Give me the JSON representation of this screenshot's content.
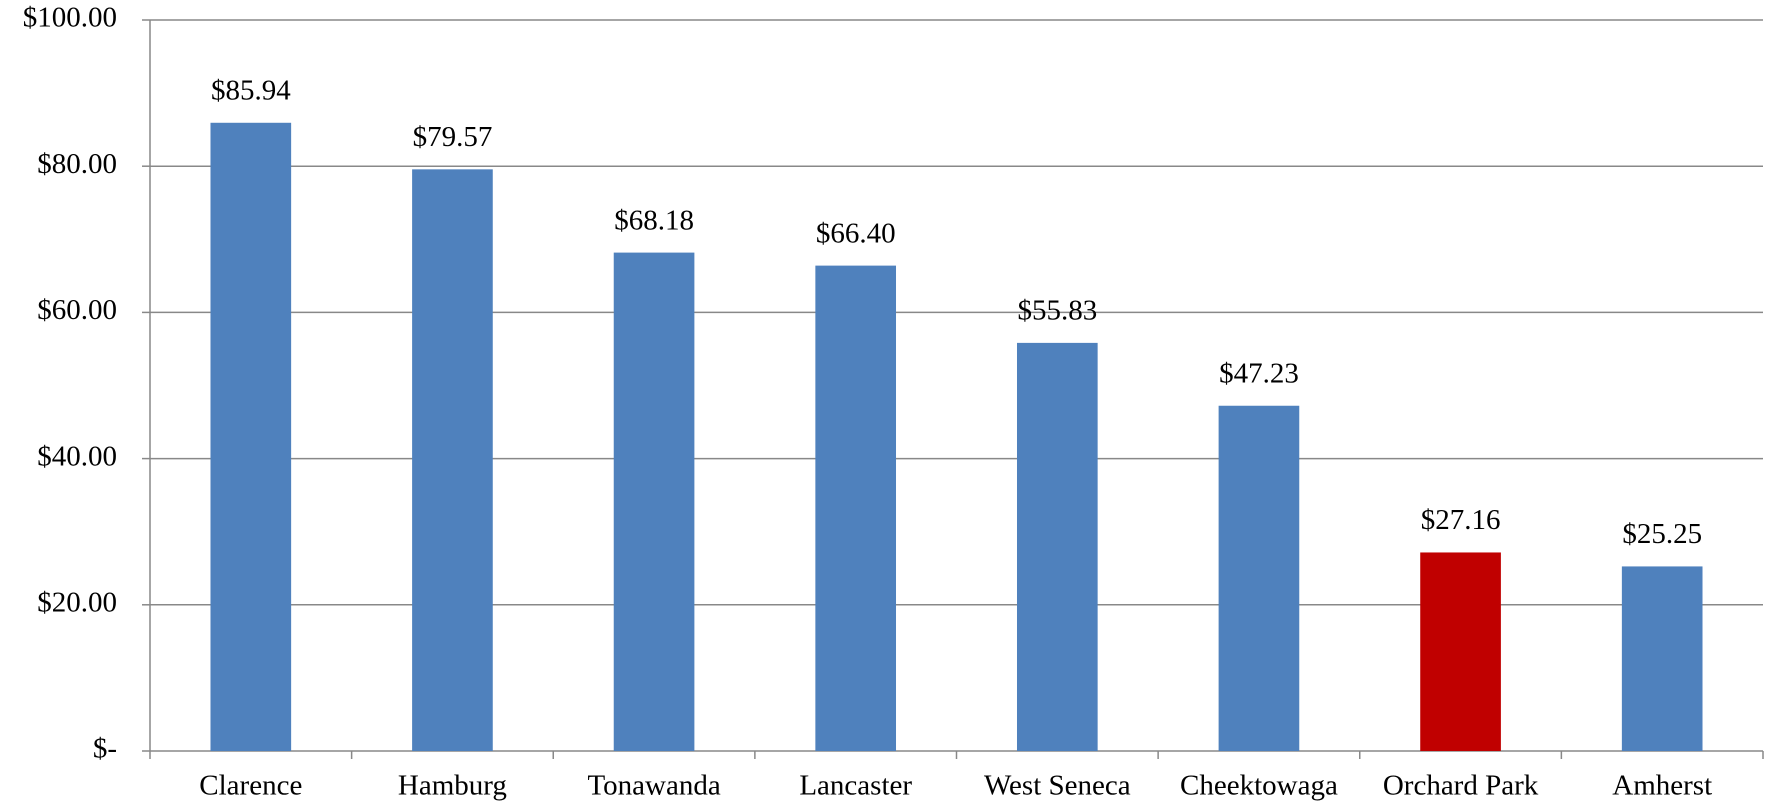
{
  "chart_data": {
    "type": "bar",
    "categories": [
      "Clarence",
      "Hamburg",
      "Tonawanda",
      "Lancaster",
      "West Seneca",
      "Cheektowaga",
      "Orchard Park",
      "Amherst"
    ],
    "values": [
      85.94,
      79.57,
      68.18,
      66.4,
      55.83,
      47.23,
      27.16,
      25.25
    ],
    "value_labels": [
      "$85.94",
      "$79.57",
      "$68.18",
      "$66.40",
      "$55.83",
      "$47.23",
      "$27.16",
      "$25.25"
    ],
    "colors": [
      "#4f81bd",
      "#4f81bd",
      "#4f81bd",
      "#4f81bd",
      "#4f81bd",
      "#4f81bd",
      "#c00000",
      "#4f81bd"
    ],
    "ylim": [
      0,
      100
    ],
    "yticks": [
      {
        "value": 0,
        "label": "$-"
      },
      {
        "value": 20,
        "label": "$20.00"
      },
      {
        "value": 40,
        "label": "$40.00"
      },
      {
        "value": 60,
        "label": "$60.00"
      },
      {
        "value": 80,
        "label": "$80.00"
      },
      {
        "value": 100,
        "label": "$100.00"
      }
    ],
    "grid": true
  }
}
